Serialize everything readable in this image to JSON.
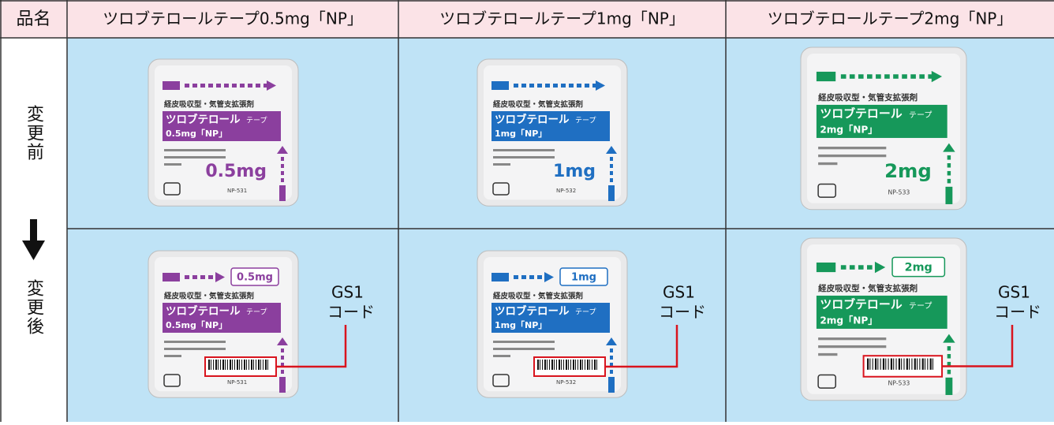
{
  "table": {
    "header": [
      "品名",
      "ツロブテロールテープ0.5mg「NP」",
      "ツロブテロールテープ1mg「NP」",
      "ツロブテロールテープ2mg「NP」"
    ],
    "rows": [
      {
        "label": "変更前",
        "packages": [
          {
            "category": "経皮吸収型・気管支拡張剤",
            "name": "ツロブテロール",
            "suffix": "テープ",
            "strength": "0.5mg「NP」",
            "dose": "0.5mg",
            "code": "NP-531",
            "color": "#8b3f9e"
          },
          {
            "category": "経皮吸収型・気管支拡張剤",
            "name": "ツロブテロール",
            "suffix": "テープ",
            "strength": "1mg「NP」",
            "dose": "1mg",
            "code": "NP-532",
            "color": "#1f6fc2"
          },
          {
            "category": "経皮吸収型・気管支拡張剤",
            "name": "ツロブテロール",
            "suffix": "テープ",
            "strength": "2mg「NP」",
            "dose": "2mg",
            "code": "NP-533",
            "color": "#16985a"
          }
        ]
      },
      {
        "label": "変更後",
        "gs1_label": [
          "GS1",
          "コード"
        ],
        "packages": [
          {
            "category": "経皮吸収型・気管支拡張剤",
            "name": "ツロブテロール",
            "suffix": "テープ",
            "strength": "0.5mg「NP」",
            "dose": "0.5mg",
            "code": "NP-531",
            "color": "#8b3f9e"
          },
          {
            "category": "経皮吸収型・気管支拡張剤",
            "name": "ツロブテロール",
            "suffix": "テープ",
            "strength": "1mg「NP」",
            "dose": "1mg",
            "code": "NP-532",
            "color": "#1f6fc2"
          },
          {
            "category": "経皮吸収型・気管支拡張剤",
            "name": "ツロブテロール",
            "suffix": "テープ",
            "strength": "2mg「NP」",
            "dose": "2mg",
            "code": "NP-533",
            "color": "#16985a"
          }
        ]
      }
    ]
  }
}
